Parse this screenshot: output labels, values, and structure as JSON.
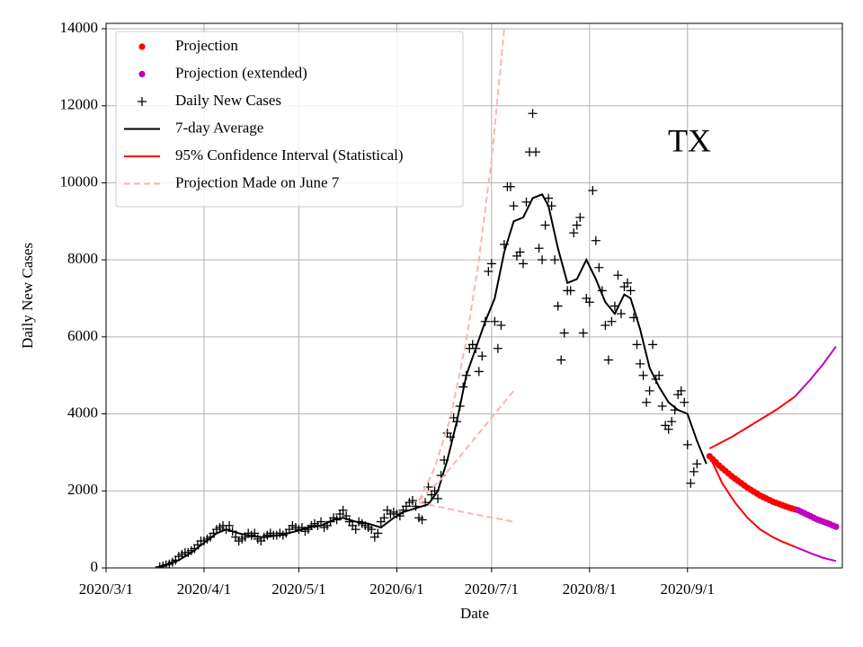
{
  "chart_data": {
    "type": "line",
    "y_label": "Daily New Cases",
    "x_label": "Date",
    "annotation": "TX",
    "xlim": [
      "2020/3/1",
      "2020/10/20"
    ],
    "xticks": [
      "2020/3/1",
      "2020/4/1",
      "2020/5/1",
      "2020/6/1",
      "2020/7/1",
      "2020/8/1",
      "2020/9/1"
    ],
    "ylim": [
      0,
      14140
    ],
    "yticks": [
      0,
      2000,
      4000,
      6000,
      8000,
      10000,
      12000,
      14000
    ],
    "grid": true,
    "legend": "upper left",
    "series": [
      {
        "name": "Projection",
        "color": "#ff0000",
        "style": "dot",
        "x": [
          "2020/9/8",
          "2020/9/9",
          "2020/9/10",
          "2020/9/11",
          "2020/9/12",
          "2020/9/13",
          "2020/9/14",
          "2020/9/15",
          "2020/9/16",
          "2020/9/17",
          "2020/9/18",
          "2020/9/19",
          "2020/9/20",
          "2020/9/21",
          "2020/9/22",
          "2020/9/23",
          "2020/9/24",
          "2020/9/25",
          "2020/9/26",
          "2020/9/27",
          "2020/9/28",
          "2020/9/29",
          "2020/9/30",
          "2020/10/1",
          "2020/10/2",
          "2020/10/3",
          "2020/10/4",
          "2020/10/5"
        ],
        "values": [
          2900,
          2820,
          2740,
          2660,
          2590,
          2520,
          2450,
          2380,
          2320,
          2260,
          2200,
          2140,
          2080,
          2030,
          1980,
          1930,
          1880,
          1840,
          1800,
          1760,
          1720,
          1690,
          1660,
          1630,
          1600,
          1570,
          1545,
          1520
        ]
      },
      {
        "name": "Projection (extended)",
        "color": "#bf00bf",
        "style": "dot",
        "x": [
          "2020/10/6",
          "2020/10/7",
          "2020/10/8",
          "2020/10/9",
          "2020/10/10",
          "2020/10/11",
          "2020/10/12",
          "2020/10/13",
          "2020/10/14",
          "2020/10/15",
          "2020/10/16",
          "2020/10/17",
          "2020/10/18"
        ],
        "values": [
          1500,
          1460,
          1420,
          1380,
          1340,
          1300,
          1260,
          1230,
          1200,
          1170,
          1140,
          1100,
          1070
        ]
      },
      {
        "name": "Daily New Cases",
        "color": "#000000",
        "style": "plus",
        "x": [
          "2020/3/18",
          "2020/3/19",
          "2020/3/20",
          "2020/3/21",
          "2020/3/22",
          "2020/3/23",
          "2020/3/24",
          "2020/3/25",
          "2020/3/26",
          "2020/3/27",
          "2020/3/28",
          "2020/3/29",
          "2020/3/30",
          "2020/3/31",
          "2020/4/1",
          "2020/4/2",
          "2020/4/3",
          "2020/4/4",
          "2020/4/5",
          "2020/4/6",
          "2020/4/7",
          "2020/4/8",
          "2020/4/9",
          "2020/4/10",
          "2020/4/11",
          "2020/4/12",
          "2020/4/13",
          "2020/4/14",
          "2020/4/15",
          "2020/4/16",
          "2020/4/17",
          "2020/4/18",
          "2020/4/19",
          "2020/4/20",
          "2020/4/21",
          "2020/4/22",
          "2020/4/23",
          "2020/4/24",
          "2020/4/25",
          "2020/4/26",
          "2020/4/27",
          "2020/4/28",
          "2020/4/29",
          "2020/4/30",
          "2020/5/1",
          "2020/5/2",
          "2020/5/3",
          "2020/5/4",
          "2020/5/5",
          "2020/5/6",
          "2020/5/7",
          "2020/5/8",
          "2020/5/9",
          "2020/5/10",
          "2020/5/11",
          "2020/5/12",
          "2020/5/13",
          "2020/5/14",
          "2020/5/15",
          "2020/5/16",
          "2020/5/17",
          "2020/5/18",
          "2020/5/19",
          "2020/5/20",
          "2020/5/21",
          "2020/5/22",
          "2020/5/23",
          "2020/5/24",
          "2020/5/25",
          "2020/5/26",
          "2020/5/27",
          "2020/5/28",
          "2020/5/29",
          "2020/5/30",
          "2020/5/31",
          "2020/6/1",
          "2020/6/2",
          "2020/6/3",
          "2020/6/4",
          "2020/6/5",
          "2020/6/6",
          "2020/6/7",
          "2020/6/8",
          "2020/6/9",
          "2020/6/10",
          "2020/6/11",
          "2020/6/12",
          "2020/6/13",
          "2020/6/14",
          "2020/6/15",
          "2020/6/16",
          "2020/6/17",
          "2020/6/18",
          "2020/6/19",
          "2020/6/20",
          "2020/6/21",
          "2020/6/22",
          "2020/6/23",
          "2020/6/24",
          "2020/6/25",
          "2020/6/26",
          "2020/6/27",
          "2020/6/28",
          "2020/6/29",
          "2020/6/30",
          "2020/7/1",
          "2020/7/2",
          "2020/7/3",
          "2020/7/4",
          "2020/7/5",
          "2020/7/6",
          "2020/7/7",
          "2020/7/8",
          "2020/7/9",
          "2020/7/10",
          "2020/7/11",
          "2020/7/12",
          "2020/7/13",
          "2020/7/14",
          "2020/7/15",
          "2020/7/16",
          "2020/7/17",
          "2020/7/18",
          "2020/7/19",
          "2020/7/20",
          "2020/7/21",
          "2020/7/22",
          "2020/7/23",
          "2020/7/24",
          "2020/7/25",
          "2020/7/26",
          "2020/7/27",
          "2020/7/28",
          "2020/7/29",
          "2020/7/30",
          "2020/7/31",
          "2020/8/1",
          "2020/8/2",
          "2020/8/3",
          "2020/8/4",
          "2020/8/5",
          "2020/8/6",
          "2020/8/7",
          "2020/8/8",
          "2020/8/9",
          "2020/8/10",
          "2020/8/11",
          "2020/8/12",
          "2020/8/13",
          "2020/8/14",
          "2020/8/15",
          "2020/8/16",
          "2020/8/17",
          "2020/8/18",
          "2020/8/19",
          "2020/8/20",
          "2020/8/21",
          "2020/8/22",
          "2020/8/23",
          "2020/8/24",
          "2020/8/25",
          "2020/8/26",
          "2020/8/27",
          "2020/8/28",
          "2020/8/29",
          "2020/8/30",
          "2020/8/31",
          "2020/9/1",
          "2020/9/2",
          "2020/9/3",
          "2020/9/4"
        ],
        "values": [
          30,
          50,
          80,
          100,
          150,
          200,
          300,
          350,
          400,
          400,
          450,
          500,
          600,
          700,
          700,
          750,
          800,
          900,
          1000,
          1050,
          1100,
          1000,
          1100,
          950,
          800,
          700,
          750,
          800,
          900,
          850,
          900,
          750,
          700,
          800,
          850,
          900,
          850,
          850,
          900,
          850,
          900,
          1000,
          1100,
          1050,
          1000,
          1050,
          950,
          1000,
          1100,
          1150,
          1100,
          1200,
          1050,
          1100,
          1200,
          1300,
          1250,
          1400,
          1500,
          1350,
          1200,
          1100,
          1000,
          1200,
          1150,
          1100,
          1050,
          1000,
          800,
          900,
          1200,
          1300,
          1500,
          1400,
          1450,
          1400,
          1350,
          1500,
          1600,
          1700,
          1750,
          1600,
          1300,
          1250,
          1700,
          2100,
          1900,
          2000,
          1800,
          2400,
          2800,
          3500,
          3400,
          3900,
          3800,
          4200,
          4700,
          5000,
          5700,
          5800,
          5700,
          5100,
          5500,
          6400,
          7700,
          7900,
          6400,
          5700,
          6300,
          8400,
          9900,
          9900,
          9400,
          8100,
          8200,
          7900,
          9500,
          10800,
          11800,
          10800,
          8300,
          8000,
          8900,
          9600,
          9400,
          8000,
          6800,
          5400,
          6100,
          7200,
          7200,
          8700,
          8900,
          9100,
          6100,
          7000,
          6900,
          9800,
          8500,
          7800,
          7200,
          6300,
          5400,
          6400,
          6800,
          7600,
          6600,
          7300,
          7400,
          7200,
          6500,
          5800,
          5300,
          5000,
          4300,
          4600,
          5800,
          4900,
          5000,
          4200,
          3700,
          3600,
          3800,
          4100,
          4500,
          4600,
          4300,
          3200,
          2200,
          2500,
          2700
        ]
      },
      {
        "name": "7-day Average",
        "color": "#000000",
        "style": "solid",
        "x": [
          "2020/3/18",
          "2020/3/24",
          "2020/3/28",
          "2020/4/1",
          "2020/4/5",
          "2020/4/8",
          "2020/4/12",
          "2020/4/16",
          "2020/4/20",
          "2020/4/25",
          "2020/4/30",
          "2020/5/4",
          "2020/5/8",
          "2020/5/12",
          "2020/5/15",
          "2020/5/19",
          "2020/5/23",
          "2020/5/27",
          "2020/5/31",
          "2020/6/3",
          "2020/6/7",
          "2020/6/11",
          "2020/6/14",
          "2020/6/17",
          "2020/6/20",
          "2020/6/23",
          "2020/6/26",
          "2020/6/29",
          "2020/7/2",
          "2020/7/5",
          "2020/7/8",
          "2020/7/11",
          "2020/7/14",
          "2020/7/17",
          "2020/7/19",
          "2020/7/22",
          "2020/7/25",
          "2020/7/28",
          "2020/7/31",
          "2020/8/3",
          "2020/8/6",
          "2020/8/9",
          "2020/8/12",
          "2020/8/14",
          "2020/8/17",
          "2020/8/20",
          "2020/8/23",
          "2020/8/26",
          "2020/8/29",
          "2020/9/1",
          "2020/9/4",
          "2020/9/7"
        ],
        "values": [
          30,
          200,
          400,
          650,
          900,
          1000,
          900,
          820,
          800,
          850,
          950,
          1050,
          1100,
          1250,
          1300,
          1200,
          1150,
          1050,
          1300,
          1450,
          1550,
          1650,
          2000,
          2800,
          3800,
          5000,
          5700,
          6400,
          7000,
          8200,
          9000,
          9100,
          9600,
          9700,
          9400,
          8300,
          7400,
          7500,
          8000,
          7500,
          6900,
          6600,
          7100,
          7000,
          6200,
          5200,
          4700,
          4300,
          4100,
          4000,
          3300,
          2700
        ]
      },
      {
        "name": "95% Confidence Interval (Statistical)",
        "color": "#ff0000",
        "style": "solid",
        "x": [
          "2020/9/8",
          "2020/9/15",
          "2020/9/22",
          "2020/9/29",
          "2020/10/5"
        ],
        "values": [
          3100,
          3400,
          3750,
          4100,
          4450
        ]
      },
      {
        "color": "#ff0000",
        "style": "solid",
        "x": [
          "2020/9/8",
          "2020/9/12",
          "2020/9/16",
          "2020/9/20",
          "2020/9/24",
          "2020/9/28",
          "2020/10/1",
          "2020/10/5"
        ],
        "values": [
          2900,
          2200,
          1700,
          1300,
          1000,
          800,
          680,
          550
        ]
      },
      {
        "color": "#bf00bf",
        "style": "solid",
        "x": [
          "2020/10/5",
          "2020/10/10",
          "2020/10/14",
          "2020/10/18"
        ],
        "values": [
          4450,
          4900,
          5300,
          5750
        ]
      },
      {
        "color": "#bf00bf",
        "style": "solid",
        "x": [
          "2020/10/5",
          "2020/10/10",
          "2020/10/14",
          "2020/10/18"
        ],
        "values": [
          550,
          380,
          260,
          180
        ]
      },
      {
        "name": "Projection Made on June 7",
        "color": "#ffb3b3",
        "style": "dashed",
        "x": [
          "2020/6/8",
          "2020/6/13",
          "2020/6/18",
          "2020/6/23",
          "2020/6/27",
          "2020/7/1",
          "2020/7/5"
        ],
        "values": [
          1750,
          2600,
          3900,
          5900,
          8000,
          10600,
          14000
        ]
      },
      {
        "color": "#ffb3b3",
        "style": "dashed",
        "x": [
          "2020/6/8",
          "2020/6/15",
          "2020/6/22",
          "2020/6/29",
          "2020/7/5",
          "2020/7/8"
        ],
        "values": [
          1750,
          2300,
          3000,
          3700,
          4300,
          4600
        ]
      },
      {
        "color": "#ffb3b3",
        "style": "dashed",
        "x": [
          "2020/6/8",
          "2020/6/22",
          "2020/7/8"
        ],
        "values": [
          1700,
          1450,
          1200
        ]
      }
    ]
  }
}
